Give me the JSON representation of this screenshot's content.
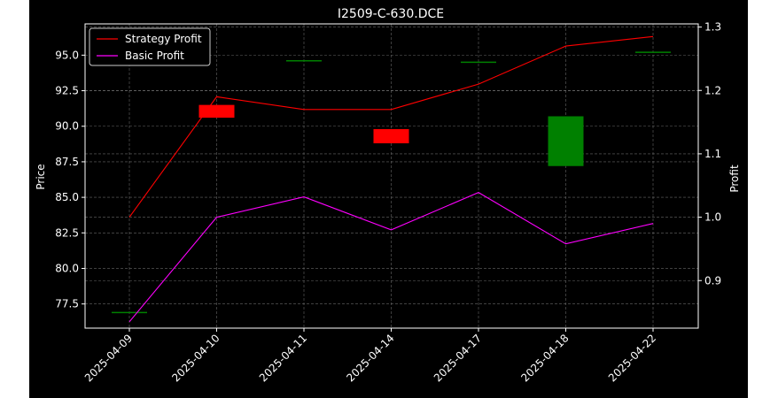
{
  "chart_data": {
    "type": "candlestick+line",
    "title": "I2509-C-630.DCE",
    "ylabel_left": "Price",
    "ylabel_right": "Profit",
    "x": [
      "2025-04-09",
      "2025-04-10",
      "2025-04-11",
      "2025-04-14",
      "2025-04-17",
      "2025-04-18",
      "2025-04-22"
    ],
    "y_left_ticks": [
      "77.5",
      "80.0",
      "82.5",
      "85.0",
      "87.5",
      "90.0",
      "92.5",
      "95.0"
    ],
    "y_right_ticks": [
      "0.9",
      "1.0",
      "1.1",
      "1.2",
      "1.3"
    ],
    "ylim_left": [
      75.8,
      97.2
    ],
    "ylim_right": [
      0.825,
      1.305
    ],
    "candles": [
      {
        "date": "2025-04-09",
        "open": 76.9,
        "close": 76.9
      },
      {
        "date": "2025-04-10",
        "open": 91.5,
        "close": 90.6
      },
      {
        "date": "2025-04-11",
        "open": 94.6,
        "close": 94.6
      },
      {
        "date": "2025-04-14",
        "open": 89.8,
        "close": 88.8
      },
      {
        "date": "2025-04-17",
        "open": 94.5,
        "close": 94.5
      },
      {
        "date": "2025-04-18",
        "open": 87.2,
        "close": 90.7
      },
      {
        "date": "2025-04-22",
        "open": 95.2,
        "close": 95.2
      }
    ],
    "series": [
      {
        "name": "Strategy Profit",
        "color": "#ff0000",
        "values": [
          1.0,
          1.19,
          1.17,
          1.17,
          1.21,
          1.27,
          1.285
        ]
      },
      {
        "name": "Basic Profit",
        "color": "#ff00ff",
        "values": [
          0.835,
          1.0,
          1.032,
          0.98,
          1.039,
          0.958,
          0.99
        ]
      }
    ],
    "colors": {
      "up": "#008000",
      "down": "#ff0000",
      "background": "#000000",
      "grid": "#808080"
    },
    "grid": true,
    "legend_position": "top-left"
  }
}
